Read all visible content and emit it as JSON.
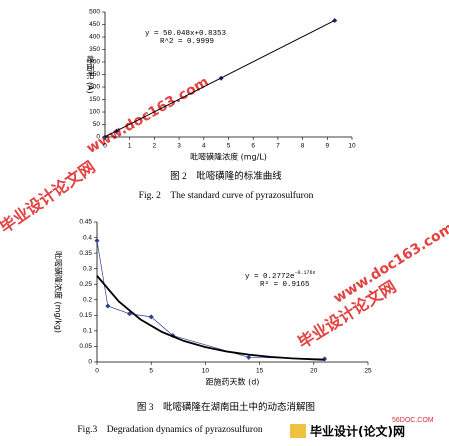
{
  "chart_data": [
    {
      "type": "scatter",
      "x_label": "吡嘧磺隆浓度 (mg/L)",
      "y_label": "峰面积 (A)",
      "xlim": [
        0,
        10
      ],
      "ylim": [
        0,
        500
      ],
      "xticks": [
        0,
        1,
        2,
        3,
        4,
        5,
        6,
        7,
        8,
        9,
        10
      ],
      "yticks": [
        0,
        50,
        100,
        150,
        200,
        250,
        300,
        350,
        400,
        450,
        500
      ],
      "series": [
        {
          "color": "#1f2f6e",
          "marker": "diamond",
          "x": [
            0,
            0.47,
            4.7,
            9.3
          ],
          "values": [
            0,
            23.5,
            235,
            466
          ]
        },
        {
          "color": "#000000",
          "line": true,
          "width": 1,
          "x": [
            0,
            9.3
          ],
          "values": [
            0.84,
            466.3
          ]
        }
      ],
      "annotations": [
        {
          "text": "y = 50.048x+0.8353"
        },
        {
          "text": "R^2 = 0.9999"
        }
      ]
    },
    {
      "type": "scatter",
      "x_label": "距施药天数 (d)",
      "y_label": "吡嘧磺隆浓度 (mg/kg)",
      "xlim": [
        0,
        25
      ],
      "ylim": [
        0,
        0.45
      ],
      "xticks": [
        0,
        5,
        10,
        15,
        20,
        25
      ],
      "yticks": [
        0,
        0.05,
        0.1,
        0.15,
        0.2,
        0.25,
        0.3,
        0.35,
        0.4,
        0.45
      ],
      "series": [
        {
          "color": "#2a3f8f",
          "marker": "diamond",
          "line": true,
          "width": 0.7,
          "x": [
            0,
            1,
            3,
            5,
            7,
            14,
            21
          ],
          "values": [
            0.39,
            0.18,
            0.155,
            0.145,
            0.085,
            0.015,
            0.01
          ]
        },
        {
          "color": "#000000",
          "line": true,
          "width": 1.8,
          "x": [
            0,
            2,
            4,
            6,
            8,
            10,
            12,
            14,
            16,
            18,
            21
          ],
          "values": [
            0.2772,
            0.195,
            0.137,
            0.0964,
            0.0678,
            0.0477,
            0.0335,
            0.0236,
            0.0166,
            0.0117,
            0.0069
          ]
        }
      ],
      "annotations": [
        {
          "text": "y = 0.2772e",
          "sup": "-0.176x"
        },
        {
          "text": "R² = 0.9165"
        }
      ]
    }
  ],
  "captions": [
    "图 2　吡嘧磺隆的标准曲线",
    "Fig. 2　The standard curve of pyrazosulfuron",
    "图 3　吡嘧磺隆在湖南田土中的动态消解图",
    "Fig.3　Degradation dynamics of pyrazosulfuron"
  ],
  "watermarks": [
    "www.doc163.com",
    "毕业设计论文网",
    "www.doc163.com",
    "毕业设计论文网"
  ],
  "logo": {
    "site": "56DOC.COM",
    "name": "毕业设计(论文)网"
  }
}
